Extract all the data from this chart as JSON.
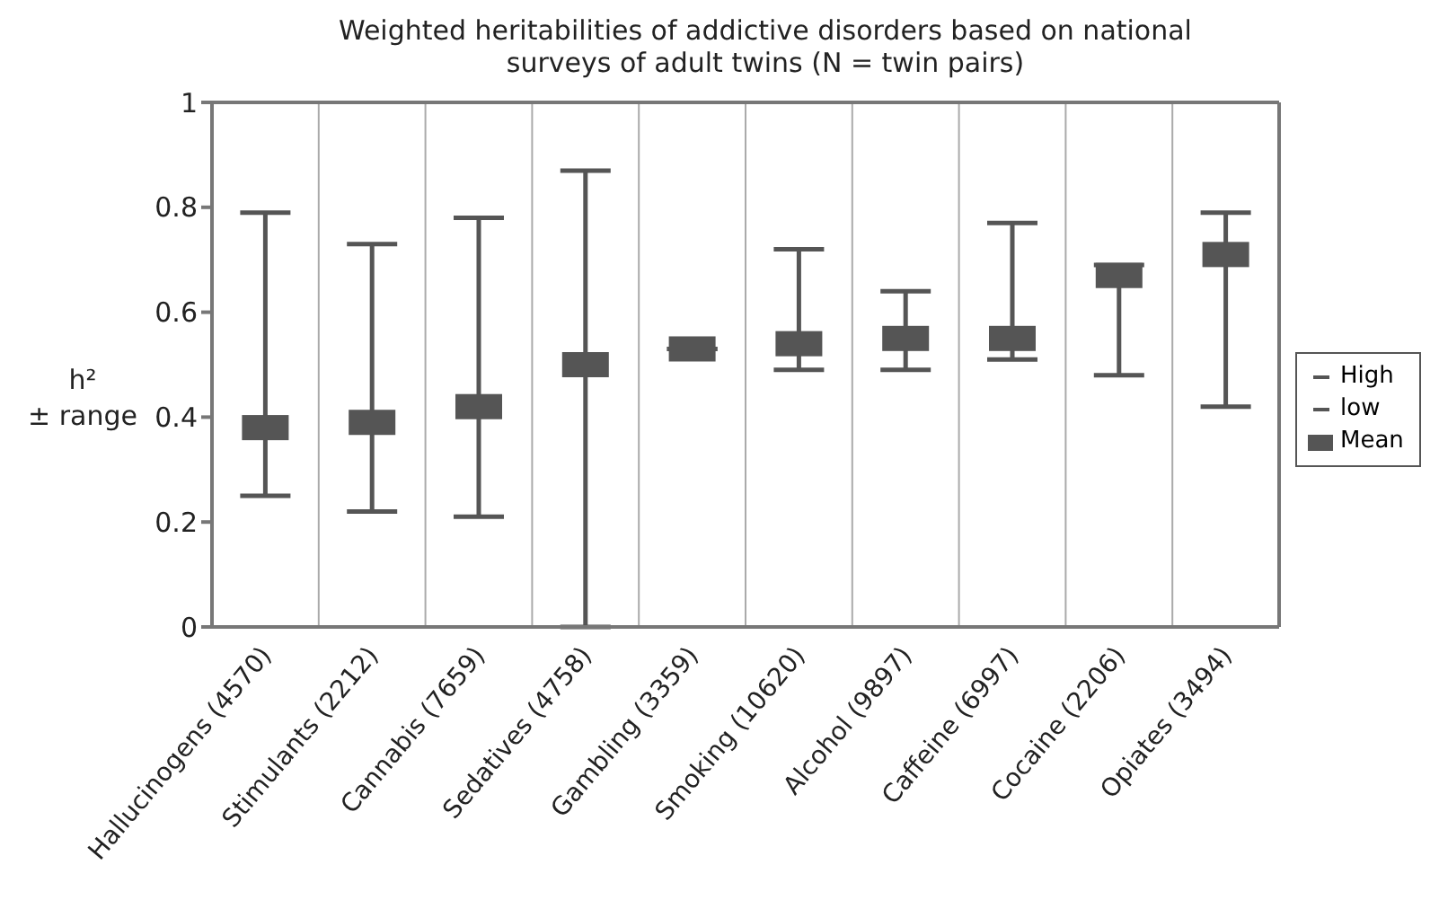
{
  "chart_data": {
    "type": "scatter",
    "title": "Weighted heritabilities of addictive disorders based on national surveys of adult twins (N = twin pairs)",
    "ylabel": "h² ± range",
    "categories": [
      "Hallucinogens (4570)",
      "Stimulants (2212)",
      "Cannabis (7659)",
      "Sedatives (4758)",
      "Gambling (3359)",
      "Smoking (10620)",
      "Alcohol (9897)",
      "Caffeine (6997)",
      "Cocaine (2206)",
      "Opiates (3494)"
    ],
    "series": [
      {
        "name": "Mean",
        "color": "#555555",
        "marker": "square",
        "values": [
          0.38,
          0.39,
          0.42,
          0.5,
          0.53,
          0.54,
          0.55,
          0.55,
          0.67,
          0.71
        ],
        "errors": [
          [
            0.25,
            0.79
          ],
          [
            0.22,
            0.73
          ],
          [
            0.21,
            0.78
          ],
          [
            0.0,
            0.87
          ],
          null,
          [
            0.49,
            0.72
          ],
          [
            0.49,
            0.64
          ],
          [
            0.51,
            0.77
          ],
          [
            0.48,
            0.69
          ],
          [
            0.42,
            0.79
          ]
        ]
      }
    ],
    "annotations": [
      "High",
      "low"
    ],
    "ylim": [
      0,
      1
    ],
    "yticks": [
      0,
      0.2,
      0.4,
      0.6,
      0.8,
      1
    ],
    "grid": "x",
    "legend": "right"
  }
}
